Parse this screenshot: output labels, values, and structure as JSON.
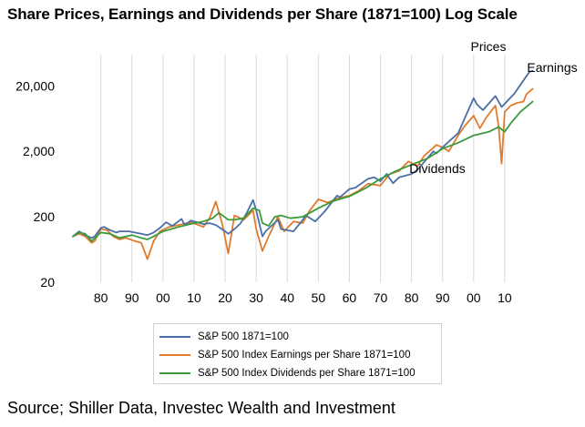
{
  "title": "Share Prices, Earnings and Dividends per Share (1871=100) Log Scale",
  "source": "Source; Shiller Data, Investec Wealth and Investment",
  "chart_data": {
    "type": "line",
    "title": "Share Prices, Earnings and Dividends per Share (1871=100) Log Scale",
    "y_scale": "log",
    "ylim": [
      20,
      60000
    ],
    "xlim": [
      1871,
      2020
    ],
    "y_ticks": [
      20,
      200,
      2000,
      20000
    ],
    "y_tick_labels": [
      "20",
      "200",
      "2,000",
      "20,000"
    ],
    "x_ticks": [
      1880,
      1890,
      1900,
      1910,
      1920,
      1930,
      1940,
      1950,
      1960,
      1970,
      1980,
      1990,
      2000,
      2010
    ],
    "x_tick_labels": [
      "80",
      "90",
      "00",
      "10",
      "20",
      "30",
      "40",
      "50",
      "60",
      "70",
      "80",
      "90",
      "00",
      "10"
    ],
    "grid": "vertical",
    "legend_position": "bottom",
    "annotations": [
      "Prices",
      "Earnings",
      "Dividends"
    ],
    "series": [
      {
        "name": "S&P 500 1871=100",
        "color": "#4a6fa5",
        "x": [
          1871,
          1873,
          1875,
          1877,
          1878,
          1880,
          1881,
          1883,
          1885,
          1886,
          1889,
          1893,
          1895,
          1897,
          1899,
          1901,
          1903,
          1906,
          1907,
          1909,
          1913,
          1915,
          1917,
          1920,
          1921,
          1923,
          1925,
          1927,
          1929,
          1930,
          1932,
          1933,
          1937,
          1938,
          1942,
          1945,
          1946,
          1949,
          1952,
          1956,
          1957,
          1960,
          1962,
          1966,
          1968,
          1970,
          1972,
          1974,
          1976,
          1980,
          1982,
          1987,
          1988,
          1990,
          1995,
          2000,
          2001,
          2003,
          2007,
          2009,
          2013,
          2018,
          2019
        ],
        "y": [
          100,
          120,
          105,
          95,
          100,
          135,
          140,
          125,
          115,
          120,
          120,
          110,
          105,
          115,
          135,
          165,
          145,
          185,
          150,
          175,
          155,
          160,
          150,
          120,
          110,
          130,
          160,
          230,
          360,
          250,
          100,
          120,
          180,
          130,
          120,
          180,
          210,
          170,
          240,
          420,
          400,
          530,
          560,
          760,
          800,
          700,
          900,
          650,
          800,
          900,
          1050,
          2000,
          1850,
          2300,
          3800,
          13000,
          10500,
          8500,
          14000,
          9500,
          15000,
          33000,
          34000
        ]
      },
      {
        "name": "S&P 500 Index Earnings  per Share 1871=100",
        "color": "#e07b2e",
        "x": [
          1871,
          1873,
          1875,
          1877,
          1878,
          1880,
          1882,
          1884,
          1886,
          1888,
          1891,
          1893,
          1895,
          1897,
          1899,
          1902,
          1905,
          1909,
          1913,
          1915,
          1917,
          1919,
          1921,
          1923,
          1926,
          1929,
          1930,
          1932,
          1934,
          1937,
          1939,
          1942,
          1945,
          1947,
          1950,
          1953,
          1956,
          1960,
          1963,
          1966,
          1970,
          1973,
          1976,
          1979,
          1982,
          1984,
          1988,
          1990,
          1992,
          1995,
          1997,
          2000,
          2002,
          2004,
          2007,
          2008,
          2009,
          2010,
          2012,
          2014,
          2016,
          2017,
          2019
        ],
        "y": [
          100,
          110,
          100,
          80,
          85,
          130,
          125,
          100,
          90,
          95,
          85,
          80,
          45,
          85,
          120,
          140,
          150,
          165,
          140,
          190,
          340,
          160,
          55,
          210,
          180,
          250,
          130,
          60,
          100,
          200,
          120,
          170,
          160,
          240,
          370,
          330,
          380,
          420,
          500,
          640,
          600,
          900,
          1000,
          1400,
          1200,
          1700,
          2500,
          2300,
          2000,
          3500,
          4800,
          7000,
          4500,
          6500,
          10000,
          5000,
          1300,
          8000,
          10000,
          11000,
          11500,
          15000,
          18000
        ]
      },
      {
        "name": "S&P 500 Index Dividends per Share 1871=100",
        "color": "#3a9a3a",
        "x": [
          1871,
          1873,
          1875,
          1877,
          1880,
          1883,
          1886,
          1888,
          1890,
          1893,
          1895,
          1897,
          1900,
          1905,
          1910,
          1913,
          1916,
          1918,
          1921,
          1923,
          1926,
          1929,
          1931,
          1932,
          1934,
          1936,
          1938,
          1941,
          1945,
          1950,
          1955,
          1960,
          1965,
          1970,
          1975,
          1980,
          1985,
          1990,
          1995,
          2000,
          2005,
          2008,
          2010,
          2012,
          2015,
          2019
        ],
        "y": [
          100,
          115,
          110,
          85,
          115,
          110,
          95,
          100,
          105,
          95,
          90,
          100,
          120,
          140,
          160,
          170,
          190,
          230,
          180,
          180,
          190,
          270,
          250,
          160,
          145,
          200,
          210,
          190,
          200,
          270,
          350,
          410,
          540,
          760,
          1000,
          1250,
          1550,
          2200,
          2700,
          3500,
          4000,
          4700,
          4000,
          5400,
          8000,
          11500
        ]
      }
    ]
  },
  "legend": {
    "items": [
      {
        "label": "S&P 500 1871=100",
        "color": "#4a6fa5"
      },
      {
        "label": "S&P 500 Index Earnings  per Share 1871=100",
        "color": "#e07b2e"
      },
      {
        "label": "S&P 500 Index Dividends per Share 1871=100",
        "color": "#3a9a3a"
      }
    ]
  }
}
